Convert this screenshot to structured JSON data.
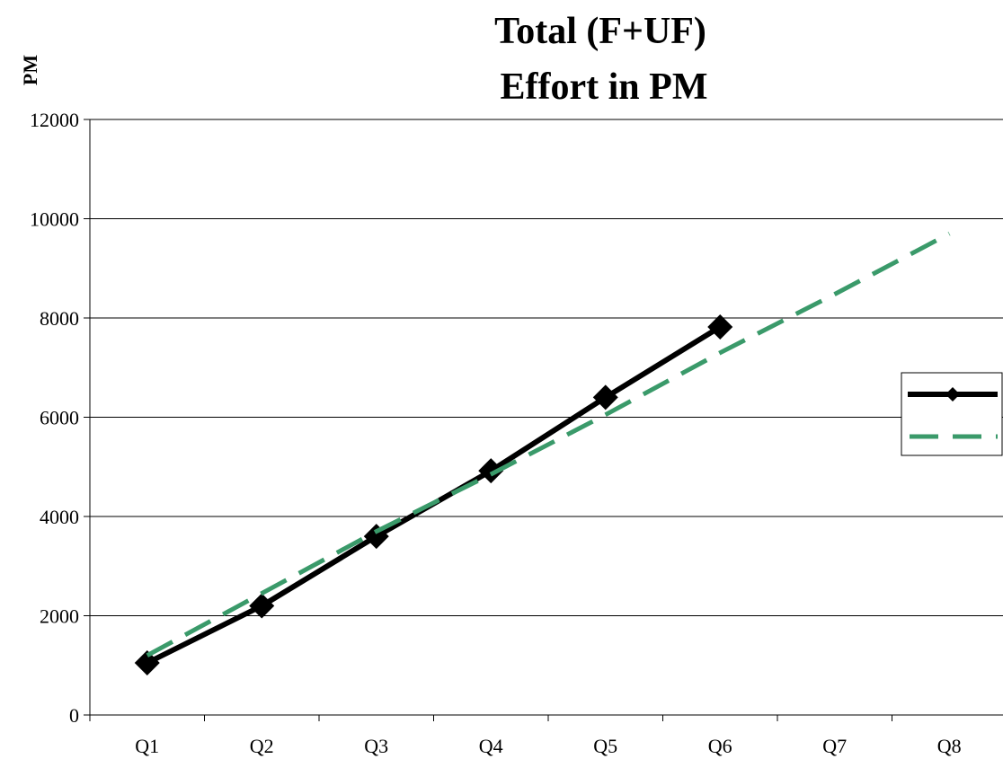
{
  "chart_data": {
    "type": "line",
    "title": [
      "Total (F+UF)",
      "Effort in PM"
    ],
    "ylabel": "PM",
    "xlabel": "",
    "categories": [
      "Q1",
      "Q2",
      "Q3",
      "Q4",
      "Q5",
      "Q6",
      "Q7",
      "Q8"
    ],
    "ylim": [
      0,
      12000
    ],
    "yticks": [
      0,
      2000,
      4000,
      6000,
      8000,
      10000,
      12000
    ],
    "grid": true,
    "legend": "right",
    "series": [
      {
        "style": "solid-diamond",
        "color": "#000000",
        "values": [
          1050,
          2200,
          3600,
          4920,
          6400,
          7820,
          null,
          null
        ]
      },
      {
        "style": "dashed",
        "color": "#3a9a6a",
        "values": [
          1200,
          2450,
          3700,
          4850,
          6050,
          7300,
          8480,
          9700
        ]
      }
    ]
  }
}
